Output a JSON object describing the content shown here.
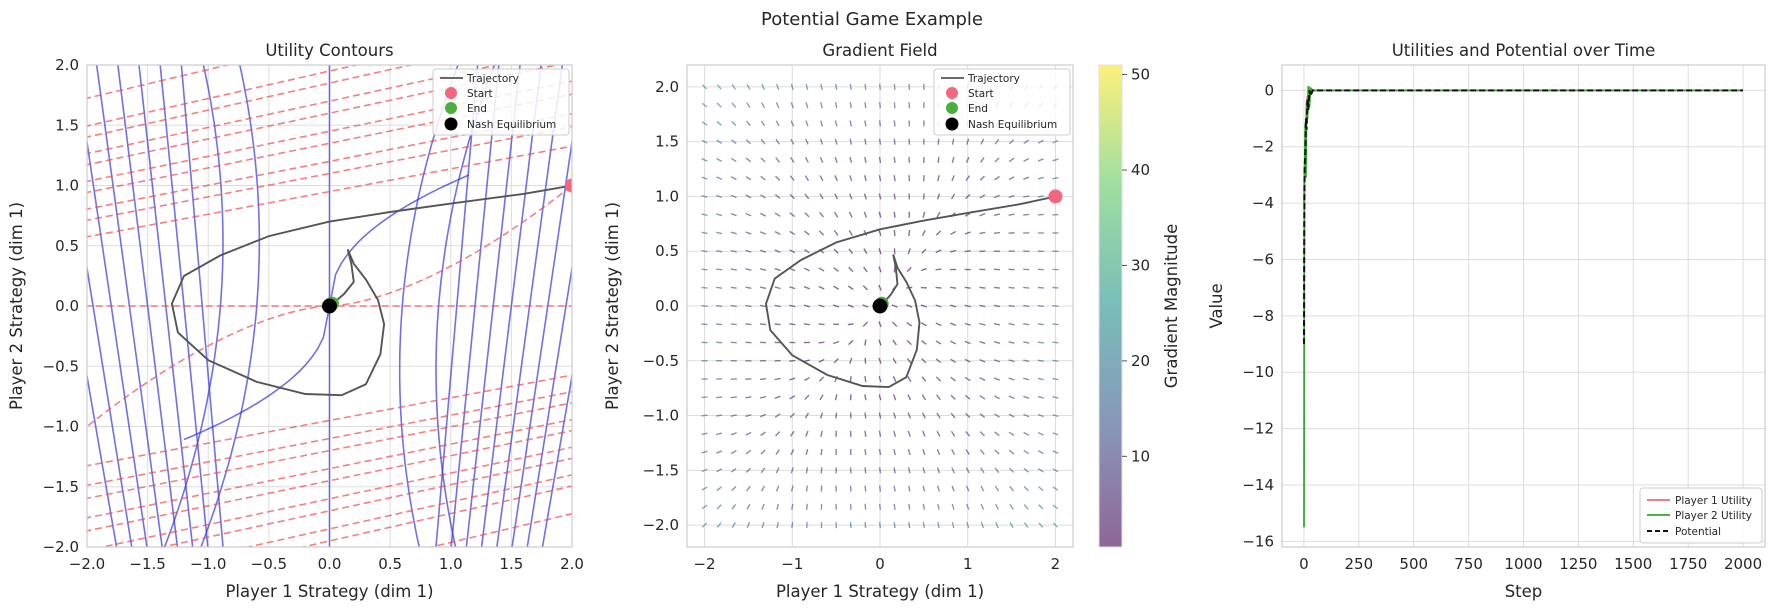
{
  "figure": {
    "title": "Potential Game Example"
  },
  "colors": {
    "p1": "#f2677e",
    "p2": "#36a82a",
    "potential": "#111111",
    "blue_contour": "#3333dd",
    "red_contour": "#f04a4a",
    "trajectory": "#555555",
    "start": "#f2677e",
    "end": "#4caf3d",
    "nash": "#000000"
  },
  "chart_data": [
    {
      "type": "line",
      "title": "Utility Contours",
      "xlabel": "Player 1 Strategy (dim 1)",
      "ylabel": "Player 2 Strategy (dim 1)",
      "xlim": [
        -2,
        2
      ],
      "ylim": [
        -2,
        2
      ],
      "xticks": [
        "-2.0",
        "-1.5",
        "-1.0",
        "-0.5",
        "0.0",
        "0.5",
        "1.0",
        "1.5",
        "2.0"
      ],
      "yticks": [
        "-2.0",
        "-1.5",
        "-1.0",
        "-0.5",
        "0.0",
        "0.5",
        "1.0",
        "1.5",
        "2.0"
      ],
      "grid": true,
      "legend": {
        "position": "top-right",
        "entries": [
          "Trajectory",
          "Start",
          "End",
          "Nash Equilibrium"
        ]
      },
      "trajectory": {
        "x": [
          2.0,
          1.6,
          1.0,
          0.5,
          0.0,
          -0.5,
          -0.9,
          -1.2,
          -1.3,
          -1.25,
          -1.0,
          -0.6,
          -0.2,
          0.1,
          0.3,
          0.42,
          0.45,
          0.4,
          0.3,
          0.2,
          0.15,
          0.18,
          0.2,
          0.12,
          0.05,
          0.0
        ],
        "y": [
          1.0,
          0.93,
          0.85,
          0.78,
          0.7,
          0.58,
          0.42,
          0.25,
          0.02,
          -0.22,
          -0.45,
          -0.63,
          -0.73,
          -0.74,
          -0.65,
          -0.4,
          -0.15,
          0.05,
          0.22,
          0.35,
          0.47,
          0.35,
          0.2,
          0.1,
          0.04,
          0.0
        ]
      },
      "start": {
        "x": 2.0,
        "y": 1.0
      },
      "end": {
        "x": 0.02,
        "y": 0.02
      },
      "nash": {
        "x": 0.0,
        "y": 0.0
      }
    },
    {
      "type": "quiver",
      "title": "Gradient Field",
      "xlabel": "Player 1 Strategy (dim 1)",
      "ylabel": "Player 2 Strategy (dim 1)",
      "xlim": [
        -2.2,
        2.2
      ],
      "ylim": [
        -2.2,
        2.2
      ],
      "xticks": [
        "-2",
        "-1",
        "0",
        "1",
        "2"
      ],
      "yticks": [
        "-2.0",
        "-1.5",
        "-1.0",
        "-0.5",
        "0.0",
        "0.5",
        "1.0",
        "1.5",
        "2.0"
      ],
      "grid": true,
      "legend": {
        "position": "top-right",
        "entries": [
          "Trajectory",
          "Start",
          "End",
          "Nash Equilibrium"
        ]
      },
      "colorbar": {
        "label": "Gradient Magnitude",
        "ticks": [
          "10",
          "20",
          "30",
          "40",
          "50"
        ],
        "range": [
          0.5,
          51
        ]
      }
    },
    {
      "type": "line",
      "title": "Utilities and Potential over Time",
      "xlabel": "Step",
      "ylabel": "Value",
      "xlim": [
        -100,
        2100
      ],
      "ylim": [
        -16.2,
        0.9
      ],
      "xticks": [
        "0",
        "250",
        "500",
        "750",
        "1000",
        "1250",
        "1500",
        "1750",
        "2000"
      ],
      "yticks": [
        "-16",
        "-14",
        "-12",
        "-10",
        "-8",
        "-6",
        "-4",
        "-2",
        "0"
      ],
      "grid": true,
      "legend": {
        "position": "bottom-right",
        "entries": [
          "Player 1 Utility",
          "Player 2 Utility",
          "Potential"
        ]
      },
      "series": [
        {
          "name": "Player 1 Utility",
          "x": [
            0,
            2,
            5,
            8,
            12,
            16,
            20,
            25,
            30,
            40,
            60,
            2000
          ],
          "y": [
            -4,
            -3,
            -2.2,
            -1.3,
            -0.6,
            -0.2,
            -0.4,
            0.05,
            -0.1,
            0.0,
            0.0,
            0.0
          ]
        },
        {
          "name": "Player 2 Utility",
          "x": [
            0,
            1,
            2,
            4,
            6,
            9,
            12,
            16,
            20,
            25,
            30,
            40,
            60,
            2000
          ],
          "y": [
            -15.5,
            -9,
            -3.8,
            -2.6,
            -1.2,
            -3.1,
            -0.4,
            -1.0,
            0.15,
            -0.6,
            0.08,
            0.0,
            0.0,
            0.0
          ]
        },
        {
          "name": "Potential",
          "x": [
            0,
            1,
            3,
            6,
            9,
            12,
            16,
            20,
            25,
            30,
            40,
            60,
            2000
          ],
          "y": [
            -9,
            -5,
            -2.8,
            -2.3,
            -1.0,
            -1.4,
            -0.3,
            -0.7,
            0.0,
            -0.2,
            0.0,
            0.0,
            0.0
          ]
        }
      ]
    }
  ]
}
